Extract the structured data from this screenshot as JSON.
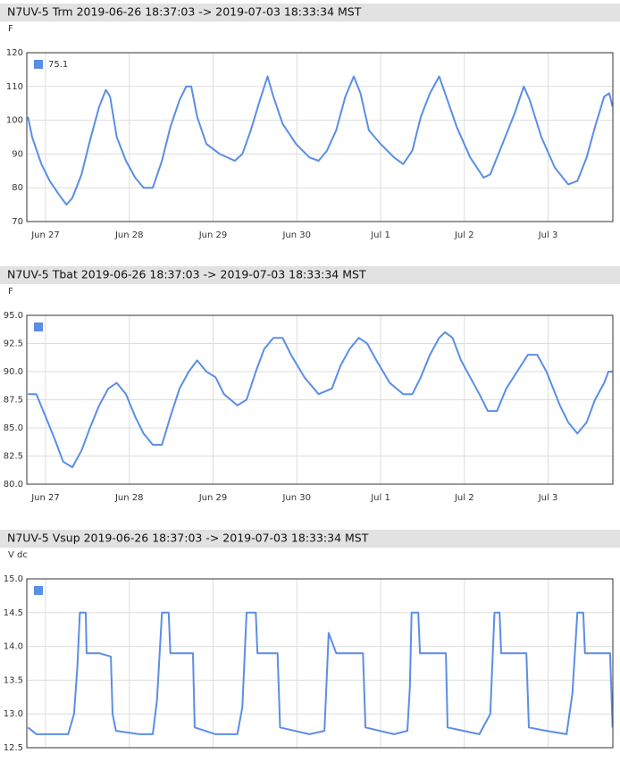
{
  "chart_data": [
    {
      "type": "line",
      "title": "N7UV-5 Trm 2019-06-26 18:37:03 -> 2019-07-03 18:33:34 MST",
      "y_label": "F",
      "x": [
        -0.21,
        -0.16,
        -0.05,
        0.05,
        0.16,
        0.25,
        0.32,
        0.43,
        0.53,
        0.64,
        0.72,
        0.77,
        0.85,
        0.96,
        1.07,
        1.17,
        1.28,
        1.39,
        1.49,
        1.6,
        1.68,
        1.74,
        1.81,
        1.92,
        2.08,
        2.26,
        2.35,
        2.45,
        2.56,
        2.65,
        2.72,
        2.83,
        2.99,
        3.15,
        3.26,
        3.36,
        3.47,
        3.58,
        3.68,
        3.76,
        3.86,
        4.0,
        4.16,
        4.27,
        4.38,
        4.48,
        4.59,
        4.7,
        4.77,
        4.91,
        5.07,
        5.23,
        5.31,
        5.44,
        5.6,
        5.71,
        5.78,
        5.92,
        6.08,
        6.24,
        6.35,
        6.46,
        6.56,
        6.67,
        6.73,
        6.77
      ],
      "series": [
        {
          "name": "75.1",
          "color": "#5b8ee6",
          "values": [
            101,
            95,
            87,
            82,
            78,
            75,
            77,
            84,
            94,
            104,
            109,
            107,
            95,
            88,
            83,
            80,
            80,
            88,
            98,
            106,
            110,
            110,
            101,
            93,
            90,
            88,
            90,
            97,
            106,
            113,
            107,
            99,
            93,
            89,
            88,
            91,
            97,
            107,
            113,
            108,
            97,
            93,
            89,
            87,
            91,
            101,
            108,
            113,
            108,
            98,
            89,
            83,
            84,
            92,
            102,
            110,
            106,
            95,
            86,
            81,
            82,
            89,
            98,
            107,
            108,
            104
          ]
        }
      ],
      "xlim": [
        -0.224,
        6.773
      ],
      "xticks": [
        {
          "value": 0,
          "label": "Jun 27"
        },
        {
          "value": 1,
          "label": "Jun 28"
        },
        {
          "value": 2,
          "label": "Jun 29"
        },
        {
          "value": 3,
          "label": "Jun 30"
        },
        {
          "value": 4,
          "label": "Jul 1"
        },
        {
          "value": 5,
          "label": "Jul 2"
        },
        {
          "value": 6,
          "label": "Jul 3"
        }
      ],
      "ylim": [
        70,
        120
      ],
      "yticks": [
        70,
        80,
        90,
        100,
        110,
        120
      ],
      "grid": true
    },
    {
      "type": "line",
      "title": "N7UV-5 Tbat 2019-06-26 18:37:03 -> 2019-07-03 18:33:34 MST",
      "y_label": "F",
      "x": [
        -0.21,
        -0.11,
        0,
        0.11,
        0.21,
        0.32,
        0.43,
        0.53,
        0.64,
        0.75,
        0.85,
        0.96,
        1.07,
        1.17,
        1.28,
        1.39,
        1.49,
        1.6,
        1.71,
        1.81,
        1.92,
        2.03,
        2.13,
        2.29,
        2.4,
        2.51,
        2.61,
        2.72,
        2.83,
        2.93,
        3.09,
        3.26,
        3.42,
        3.52,
        3.63,
        3.74,
        3.84,
        3.95,
        4.11,
        4.27,
        4.38,
        4.48,
        4.59,
        4.7,
        4.77,
        4.86,
        4.96,
        5.07,
        5.18,
        5.28,
        5.39,
        5.5,
        5.63,
        5.76,
        5.87,
        5.98,
        6.14,
        6.24,
        6.35,
        6.46,
        6.56,
        6.67,
        6.72,
        6.77
      ],
      "series": [
        {
          "color": "#5b8ee6",
          "values": [
            88,
            88,
            86,
            84,
            82,
            81.5,
            83,
            85,
            87,
            88.5,
            89,
            88,
            86,
            84.5,
            83.5,
            83.5,
            86,
            88.5,
            90,
            91,
            90,
            89.5,
            88,
            87,
            87.5,
            90,
            92,
            93,
            93,
            91.5,
            89.5,
            88,
            88.5,
            90.5,
            92,
            93,
            92.5,
            91,
            89,
            88,
            88,
            89.5,
            91.5,
            93,
            93.5,
            93,
            91,
            89.5,
            88,
            86.5,
            86.5,
            88.5,
            90,
            91.5,
            91.5,
            90,
            87,
            85.5,
            84.5,
            85.5,
            87.5,
            89,
            90,
            90
          ]
        }
      ],
      "xlim": [
        -0.224,
        6.773
      ],
      "xticks": [
        {
          "value": 0,
          "label": "Jun 27"
        },
        {
          "value": 1,
          "label": "Jun 28"
        },
        {
          "value": 2,
          "label": "Jun 29"
        },
        {
          "value": 3,
          "label": "Jun 30"
        },
        {
          "value": 4,
          "label": "Jul 1"
        },
        {
          "value": 5,
          "label": "Jul 2"
        },
        {
          "value": 6,
          "label": "Jul 3"
        }
      ],
      "ylim": [
        80,
        95
      ],
      "yticks": [
        {
          "value": 80,
          "label": "80.0"
        },
        {
          "value": 82.5,
          "label": "82.5"
        },
        {
          "value": 85,
          "label": "85.0"
        },
        {
          "value": 87.5,
          "label": "87.5"
        },
        {
          "value": 90,
          "label": "90.0"
        },
        {
          "value": 92.5,
          "label": "92.5"
        },
        {
          "value": 95,
          "label": "95.0"
        }
      ],
      "grid": true
    },
    {
      "type": "line",
      "title": "N7UV-5 Vsup 2019-06-26 18:37:03 -> 2019-07-03 18:33:34 MST",
      "y_label": "V dc",
      "x": [
        -0.21,
        -0.11,
        0.27,
        0.34,
        0.38,
        0.41,
        0.48,
        0.49,
        0.64,
        0.78,
        0.8,
        0.84,
        1.12,
        1.28,
        1.33,
        1.39,
        1.47,
        1.49,
        1.76,
        1.78,
        2.03,
        2.29,
        2.35,
        2.4,
        2.51,
        2.53,
        2.77,
        2.8,
        3.15,
        3.33,
        3.38,
        3.47,
        3.79,
        3.82,
        4.16,
        4.32,
        4.35,
        4.37,
        4.45,
        4.47,
        4.78,
        4.8,
        5.18,
        5.31,
        5.36,
        5.42,
        5.44,
        5.74,
        5.77,
        5.98,
        6.22,
        6.29,
        6.35,
        6.42,
        6.44,
        6.74,
        6.77
      ],
      "series": [
        {
          "color": "#5b8ee6",
          "values": [
            12.8,
            12.7,
            12.7,
            13.0,
            13.7,
            14.5,
            14.5,
            13.9,
            13.9,
            13.85,
            13.0,
            12.75,
            12.7,
            12.7,
            13.2,
            14.5,
            14.5,
            13.9,
            13.9,
            12.8,
            12.7,
            12.7,
            13.1,
            14.5,
            14.5,
            13.9,
            13.9,
            12.8,
            12.7,
            12.75,
            14.2,
            13.9,
            13.9,
            12.8,
            12.7,
            12.75,
            13.4,
            14.5,
            14.5,
            13.9,
            13.9,
            12.8,
            12.7,
            13.0,
            14.5,
            14.5,
            13.9,
            13.9,
            12.8,
            12.75,
            12.7,
            13.3,
            14.5,
            14.5,
            13.9,
            13.9,
            12.8
          ]
        }
      ],
      "xlim": [
        -0.224,
        6.773
      ],
      "xticks": [
        0,
        1,
        2,
        3,
        4,
        5,
        6
      ],
      "ylim": [
        12.5,
        15
      ],
      "yticks": [
        {
          "value": 12.5,
          "label": "12.5"
        },
        {
          "value": 13,
          "label": "13.0"
        },
        {
          "value": 13.5,
          "label": "13.5"
        },
        {
          "value": 14,
          "label": "14.0"
        },
        {
          "value": 14.5,
          "label": "14.5"
        },
        {
          "value": 15,
          "label": "15.0"
        }
      ],
      "grid": true
    }
  ]
}
